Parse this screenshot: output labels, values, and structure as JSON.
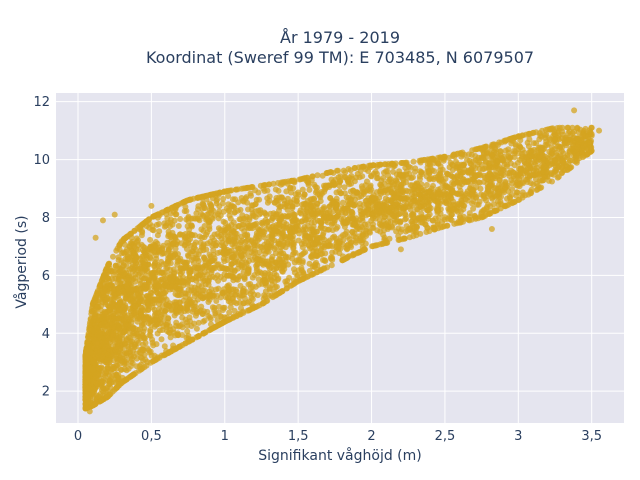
{
  "chart_data": {
    "type": "scatter",
    "title_line1": "År 1979 - 2019",
    "title_line2": "Koordinat (Sweref 99 TM): E 703485, N 6079507",
    "xlabel": "Signifikant våghöjd (m)",
    "ylabel": "Vågperiod (s)",
    "xlim": [
      -0.15,
      3.72
    ],
    "ylim": [
      0.9,
      12.3
    ],
    "x_ticks": [
      0,
      0.5,
      1,
      1.5,
      2,
      2.5,
      3,
      3.5
    ],
    "x_tick_labels": [
      "0",
      "0,5",
      "1",
      "1,5",
      "2",
      "2,5",
      "3",
      "3,5"
    ],
    "y_ticks": [
      2,
      4,
      6,
      8,
      10,
      12
    ],
    "y_tick_labels": [
      "2",
      "4",
      "6",
      "8",
      "10",
      "12"
    ],
    "grid": true,
    "marker_color": "#D4A420",
    "background_color": "#E5E5EF",
    "band_points": [
      {
        "x": 0.05,
        "y_low": 1.4,
        "y_high": 3.2
      },
      {
        "x": 0.1,
        "y_low": 1.5,
        "y_high": 5.0
      },
      {
        "x": 0.2,
        "y_low": 1.8,
        "y_high": 6.3
      },
      {
        "x": 0.3,
        "y_low": 2.3,
        "y_high": 7.2
      },
      {
        "x": 0.5,
        "y_low": 3.0,
        "y_high": 8.0
      },
      {
        "x": 0.75,
        "y_low": 3.7,
        "y_high": 8.6
      },
      {
        "x": 1.0,
        "y_low": 4.4,
        "y_high": 8.9
      },
      {
        "x": 1.25,
        "y_low": 5.0,
        "y_high": 9.1
      },
      {
        "x": 1.5,
        "y_low": 5.8,
        "y_high": 9.3
      },
      {
        "x": 1.75,
        "y_low": 6.4,
        "y_high": 9.6
      },
      {
        "x": 2.0,
        "y_low": 7.0,
        "y_high": 9.8
      },
      {
        "x": 2.25,
        "y_low": 7.3,
        "y_high": 9.9
      },
      {
        "x": 2.5,
        "y_low": 7.7,
        "y_high": 10.1
      },
      {
        "x": 2.75,
        "y_low": 8.0,
        "y_high": 10.4
      },
      {
        "x": 3.0,
        "y_low": 8.6,
        "y_high": 10.8
      },
      {
        "x": 3.25,
        "y_low": 9.3,
        "y_high": 11.1
      },
      {
        "x": 3.5,
        "y_low": 10.3,
        "y_high": 11.1
      }
    ],
    "outlier_points": [
      {
        "x": 3.38,
        "y": 11.7
      },
      {
        "x": 3.5,
        "y": 11.1
      },
      {
        "x": 3.55,
        "y": 11.0
      },
      {
        "x": 0.12,
        "y": 7.3
      },
      {
        "x": 0.17,
        "y": 7.9
      },
      {
        "x": 0.25,
        "y": 8.1
      },
      {
        "x": 0.5,
        "y": 8.4
      },
      {
        "x": 0.08,
        "y": 1.3
      },
      {
        "x": 2.2,
        "y": 6.9
      },
      {
        "x": 2.82,
        "y": 7.6
      },
      {
        "x": 2.62,
        "y": 9.8
      }
    ]
  }
}
